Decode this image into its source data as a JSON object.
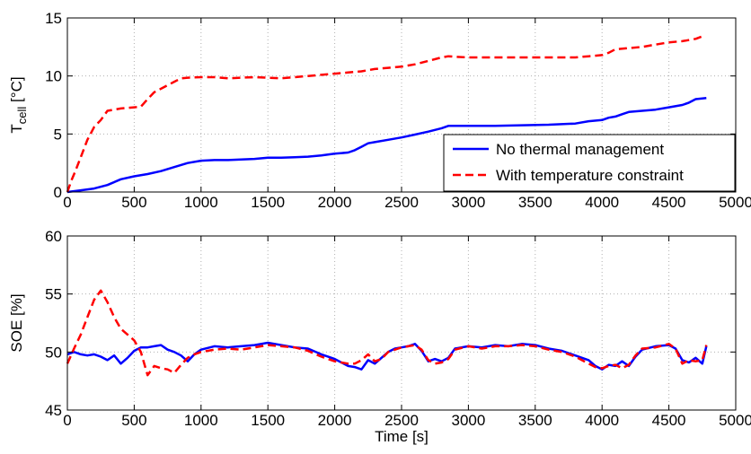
{
  "chart_data": [
    {
      "type": "line",
      "title": "",
      "xlabel": "",
      "ylabel": "T",
      "ylabel_sub": "cell",
      "ylabel_unit": " [°C]",
      "xlim": [
        0,
        5000
      ],
      "ylim": [
        0,
        15
      ],
      "xticks": [
        0,
        500,
        1000,
        1500,
        2000,
        2500,
        3000,
        3500,
        4000,
        4500,
        5000
      ],
      "yticks": [
        0,
        5,
        10,
        15
      ],
      "grid": "dotted",
      "legend_position": "bottom-right",
      "series": [
        {
          "name": "No thermal management",
          "color": "#0000ff",
          "style": "solid",
          "x": [
            0,
            100,
            200,
            300,
            400,
            500,
            600,
            700,
            800,
            900,
            1000,
            1100,
            1200,
            1300,
            1400,
            1500,
            1600,
            1700,
            1800,
            1900,
            2000,
            2100,
            2150,
            2200,
            2250,
            2300,
            2400,
            2500,
            2600,
            2700,
            2800,
            2850,
            2900,
            3000,
            3200,
            3400,
            3600,
            3800,
            3900,
            4000,
            4050,
            4100,
            4150,
            4200,
            4300,
            4400,
            4500,
            4600,
            4650,
            4700,
            4780
          ],
          "y": [
            0,
            0.15,
            0.3,
            0.6,
            1.1,
            1.35,
            1.55,
            1.8,
            2.15,
            2.5,
            2.7,
            2.75,
            2.75,
            2.8,
            2.85,
            2.95,
            2.95,
            3.0,
            3.05,
            3.15,
            3.3,
            3.4,
            3.6,
            3.9,
            4.2,
            4.3,
            4.5,
            4.7,
            4.95,
            5.2,
            5.5,
            5.7,
            5.7,
            5.7,
            5.7,
            5.75,
            5.8,
            5.9,
            6.1,
            6.2,
            6.4,
            6.5,
            6.7,
            6.9,
            7.0,
            7.1,
            7.3,
            7.5,
            7.7,
            8.0,
            8.1
          ]
        },
        {
          "name": "With temperature constraint",
          "color": "#ff0000",
          "style": "dashed",
          "x": [
            0,
            30,
            60,
            100,
            150,
            200,
            250,
            300,
            350,
            400,
            450,
            500,
            550,
            600,
            650,
            700,
            800,
            850,
            900,
            1000,
            1100,
            1200,
            1300,
            1400,
            1500,
            1600,
            1700,
            1800,
            1900,
            2000,
            2100,
            2200,
            2300,
            2400,
            2500,
            2600,
            2700,
            2800,
            2850,
            2900,
            3000,
            3200,
            3400,
            3600,
            3800,
            3900,
            4000,
            4050,
            4100,
            4200,
            4300,
            4400,
            4500,
            4600,
            4700,
            4770
          ],
          "y": [
            0,
            1.0,
            1.8,
            3.0,
            4.5,
            5.6,
            6.2,
            7.0,
            7.1,
            7.2,
            7.25,
            7.3,
            7.35,
            8.0,
            8.6,
            8.9,
            9.5,
            9.8,
            9.85,
            9.9,
            9.9,
            9.8,
            9.85,
            9.9,
            9.85,
            9.8,
            9.9,
            10.0,
            10.1,
            10.2,
            10.3,
            10.4,
            10.6,
            10.7,
            10.8,
            11.0,
            11.3,
            11.6,
            11.7,
            11.65,
            11.6,
            11.6,
            11.6,
            11.6,
            11.6,
            11.7,
            11.8,
            12.0,
            12.3,
            12.4,
            12.5,
            12.7,
            12.9,
            13.0,
            13.2,
            13.5
          ]
        }
      ]
    },
    {
      "type": "line",
      "title": "",
      "xlabel": "Time [s]",
      "ylabel": "SOE [%]",
      "xlim": [
        0,
        5000
      ],
      "ylim": [
        45,
        60
      ],
      "xticks": [
        0,
        500,
        1000,
        1500,
        2000,
        2500,
        3000,
        3500,
        4000,
        4500,
        5000
      ],
      "yticks": [
        45,
        50,
        55,
        60
      ],
      "grid": "dotted",
      "series": [
        {
          "name": "No thermal management",
          "color": "#0000ff",
          "style": "solid",
          "x": [
            0,
            50,
            100,
            150,
            200,
            250,
            300,
            350,
            400,
            450,
            500,
            550,
            600,
            650,
            700,
            750,
            800,
            850,
            900,
            950,
            1000,
            1100,
            1200,
            1300,
            1400,
            1500,
            1600,
            1700,
            1800,
            1900,
            2000,
            2100,
            2150,
            2200,
            2250,
            2300,
            2350,
            2400,
            2450,
            2500,
            2550,
            2600,
            2650,
            2700,
            2750,
            2800,
            2850,
            2900,
            3000,
            3100,
            3200,
            3300,
            3400,
            3500,
            3600,
            3700,
            3800,
            3900,
            3950,
            4000,
            4050,
            4100,
            4150,
            4200,
            4250,
            4300,
            4400,
            4500,
            4550,
            4600,
            4650,
            4700,
            4750,
            4780
          ],
          "y": [
            49.8,
            50.0,
            49.8,
            49.7,
            49.8,
            49.6,
            49.3,
            49.7,
            49.0,
            49.5,
            50.1,
            50.4,
            50.4,
            50.5,
            50.6,
            50.2,
            50.0,
            49.7,
            49.2,
            49.8,
            50.2,
            50.5,
            50.4,
            50.5,
            50.6,
            50.8,
            50.6,
            50.4,
            50.3,
            49.8,
            49.4,
            48.8,
            48.7,
            48.5,
            49.3,
            49.0,
            49.5,
            50.0,
            50.3,
            50.4,
            50.5,
            50.7,
            50.1,
            49.2,
            49.4,
            49.2,
            49.5,
            50.3,
            50.5,
            50.4,
            50.6,
            50.5,
            50.7,
            50.6,
            50.3,
            50.1,
            49.7,
            49.3,
            48.8,
            48.5,
            48.9,
            48.8,
            49.2,
            48.8,
            49.6,
            50.2,
            50.5,
            50.6,
            50.3,
            49.3,
            49.1,
            49.5,
            49.0,
            50.5
          ]
        },
        {
          "name": "With temperature constraint",
          "color": "#ff0000",
          "style": "dashed",
          "x": [
            0,
            50,
            100,
            150,
            200,
            250,
            300,
            350,
            400,
            450,
            500,
            550,
            600,
            650,
            700,
            750,
            800,
            850,
            900,
            950,
            1000,
            1100,
            1200,
            1300,
            1400,
            1500,
            1600,
            1700,
            1800,
            1900,
            2000,
            2100,
            2150,
            2200,
            2250,
            2300,
            2350,
            2400,
            2450,
            2500,
            2550,
            2600,
            2650,
            2700,
            2750,
            2800,
            2850,
            2900,
            3000,
            3100,
            3200,
            3300,
            3400,
            3500,
            3600,
            3700,
            3800,
            3900,
            3950,
            4000,
            4050,
            4100,
            4150,
            4200,
            4250,
            4300,
            4400,
            4500,
            4550,
            4600,
            4650,
            4700,
            4750,
            4780
          ],
          "y": [
            49.0,
            50.3,
            51.5,
            53.0,
            54.5,
            55.3,
            54.3,
            53.0,
            52.0,
            51.5,
            51.0,
            50.0,
            48.0,
            48.8,
            48.6,
            48.5,
            48.2,
            48.9,
            49.5,
            49.8,
            50.0,
            50.2,
            50.3,
            50.2,
            50.4,
            50.6,
            50.5,
            50.4,
            50.1,
            49.6,
            49.2,
            49.0,
            49.0,
            49.3,
            49.8,
            49.2,
            49.4,
            50.0,
            50.2,
            50.4,
            50.5,
            50.6,
            50.2,
            49.3,
            49.0,
            49.1,
            49.4,
            50.2,
            50.5,
            50.3,
            50.5,
            50.5,
            50.6,
            50.5,
            50.2,
            50.0,
            49.6,
            49.0,
            48.7,
            48.6,
            48.8,
            48.9,
            48.6,
            48.9,
            49.7,
            50.3,
            50.4,
            50.7,
            50.3,
            49.0,
            49.3,
            49.2,
            49.3,
            50.6
          ]
        }
      ]
    }
  ]
}
